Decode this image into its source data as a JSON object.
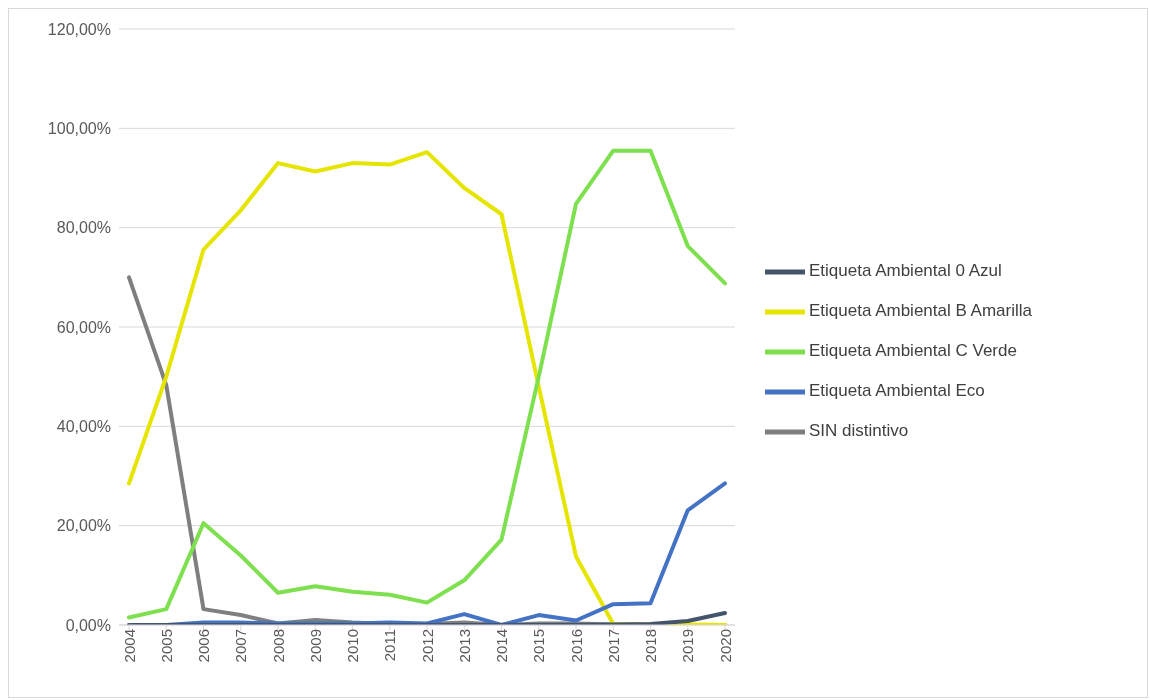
{
  "chart_data": {
    "type": "line",
    "categories": [
      "2004",
      "2005",
      "2006",
      "2007",
      "2008",
      "2009",
      "2010",
      "2011",
      "2012",
      "2013",
      "2014",
      "2015",
      "2016",
      "2017",
      "2018",
      "2019",
      "2020"
    ],
    "series": [
      {
        "name": "SIN distintivo",
        "color": "#7f7f7f",
        "values": [
          70,
          48.3,
          3.2,
          2,
          0.3,
          1,
          0.5,
          0.2,
          0.2,
          0.5,
          0,
          0.3,
          0.3,
          0.1,
          0,
          0,
          0
        ]
      },
      {
        "name": "Etiqueta Ambiental B Amarilla",
        "color": "#e5e500",
        "values": [
          28.5,
          50,
          75.6,
          83.5,
          93,
          91.3,
          93,
          92.7,
          95.2,
          88,
          82.7,
          48,
          13.8,
          0.2,
          0.1,
          0.1,
          0
        ]
      },
      {
        "name": "Etiqueta Ambiental C Verde",
        "color": "#7ee04f",
        "values": [
          1.5,
          3.2,
          20.5,
          14,
          6.5,
          7.8,
          6.7,
          6.1,
          4.5,
          9,
          17.2,
          50,
          84.8,
          95.5,
          95.5,
          76.3,
          68.8
        ]
      },
      {
        "name": "Etiqueta Ambiental Eco",
        "color": "#4472c4",
        "values": [
          0,
          0,
          0.5,
          0.5,
          0.3,
          0.3,
          0.3,
          0.5,
          0.3,
          2.2,
          0,
          2,
          0.9,
          4.2,
          4.4,
          23.1,
          28.5
        ]
      },
      {
        "name": "Etiqueta Ambiental 0 Azul",
        "color": "#44546a",
        "values": [
          0,
          0,
          0,
          0,
          0,
          0,
          0,
          0,
          0,
          0,
          0,
          0,
          0,
          0.1,
          0.2,
          0.8,
          2.4
        ]
      }
    ],
    "ylim": [
      0,
      120
    ],
    "yticks": [
      {
        "value": 0,
        "label": "0,00%"
      },
      {
        "value": 20,
        "label": "20,00%"
      },
      {
        "value": 40,
        "label": "40,00%"
      },
      {
        "value": 60,
        "label": "60,00%"
      },
      {
        "value": 80,
        "label": "80,00%"
      },
      {
        "value": 100,
        "label": "100,00%"
      },
      {
        "value": 120,
        "label": "120,00%"
      }
    ],
    "grid": "y",
    "legend": "right",
    "marker": "none",
    "line_style": "solid"
  }
}
